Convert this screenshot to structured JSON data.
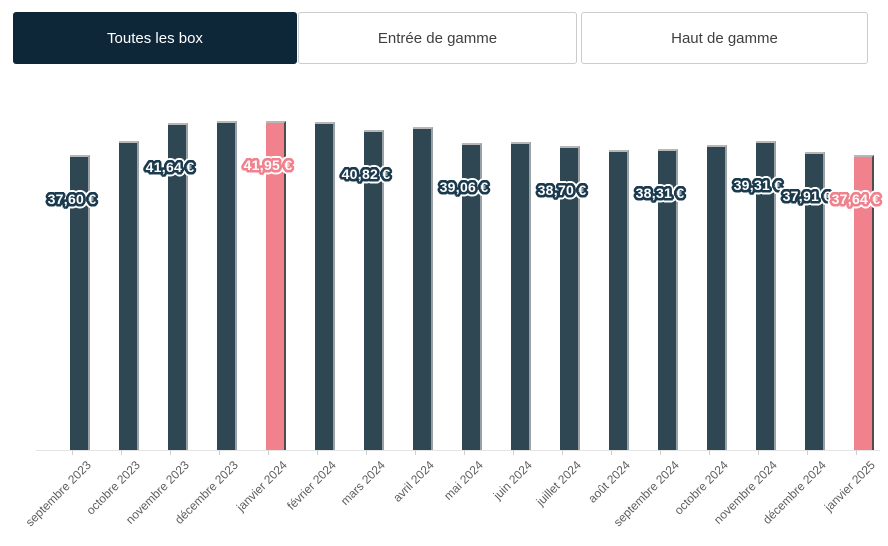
{
  "tabs": {
    "items": [
      {
        "label": "Toutes les box",
        "active": true
      },
      {
        "label": "Entrée de gamme",
        "active": false
      },
      {
        "label": "Haut de gamme",
        "active": false
      }
    ]
  },
  "colors": {
    "tab_active_bg": "#0e2738",
    "tab_active_text": "#ffffff",
    "tab_inactive_text": "#3f3f3f",
    "tab_border": "#cccccc",
    "bar_default": "#2e4753",
    "bar_highlight": "#f0818d",
    "value_label_text": "#ffffff",
    "value_label_outline_default": "#1b3a4e",
    "value_label_outline_highlight": "#f0818d",
    "value_label_halo": "#ffffff",
    "axis_line": "#e4e4e4",
    "axis_label_text": "#5e5e5e"
  },
  "chart_data": {
    "type": "bar",
    "title": "",
    "xlabel": "",
    "ylabel": "",
    "unit": "€",
    "ylim": [
      0,
      42.3
    ],
    "grid": false,
    "legend": null,
    "categories": [
      "septembre 2023",
      "octobre 2023",
      "novembre 2023",
      "décembre 2023",
      "janvier 2024",
      "février 2024",
      "mars 2024",
      "avril 2024",
      "mai 2024",
      "juin 2024",
      "juillet 2024",
      "août 2024",
      "septembre 2024",
      "octobre 2024",
      "novembre 2024",
      "décembre 2024",
      "janvier 2025"
    ],
    "values": [
      37.6,
      39.3,
      41.64,
      41.9,
      41.95,
      41.8,
      40.82,
      41.15,
      39.06,
      39.2,
      38.7,
      38.25,
      38.31,
      38.8,
      39.31,
      37.91,
      37.64
    ],
    "value_labels": [
      "37,60 €",
      "",
      "41,64 €",
      "",
      "41,95 €",
      "",
      "40,82 €",
      "",
      "39,06 €",
      "",
      "38,70 €",
      "",
      "38,31 €",
      "",
      "39,31 €",
      "37,91 €",
      "37,64 €"
    ],
    "highlighted_indices": [
      4,
      16
    ]
  }
}
